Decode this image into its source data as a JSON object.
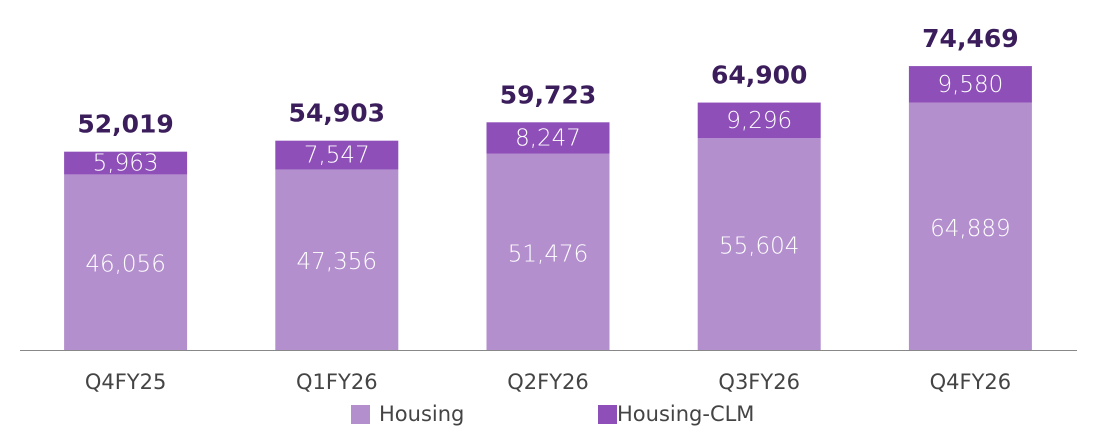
{
  "chart_data": {
    "type": "stacked-bar",
    "categories": [
      "Q4FY25",
      "Q1FY26",
      "Q2FY26",
      "Q3FY26",
      "Q4FY26"
    ],
    "series": [
      {
        "name": "Housing",
        "color": "#b48fce",
        "values": [
          46056,
          47356,
          51476,
          55604,
          64889
        ],
        "value_labels": [
          "46,056",
          "47,356",
          "51,476",
          "55,604",
          "64,889"
        ]
      },
      {
        "name": "Housing-CLM",
        "color": "#8e4fb8",
        "values": [
          5963,
          7547,
          8247,
          9296,
          9580
        ],
        "value_labels": [
          "5,963",
          "7,547",
          "8,247",
          "9,296",
          "9,580"
        ]
      }
    ],
    "totals": [
      52019,
      54903,
      59723,
      64900,
      74469
    ],
    "total_labels": [
      "52,019",
      "54,903",
      "59,723",
      "64,900",
      "74,469"
    ],
    "ylim": [
      0,
      80000
    ],
    "legend": "bottom"
  }
}
